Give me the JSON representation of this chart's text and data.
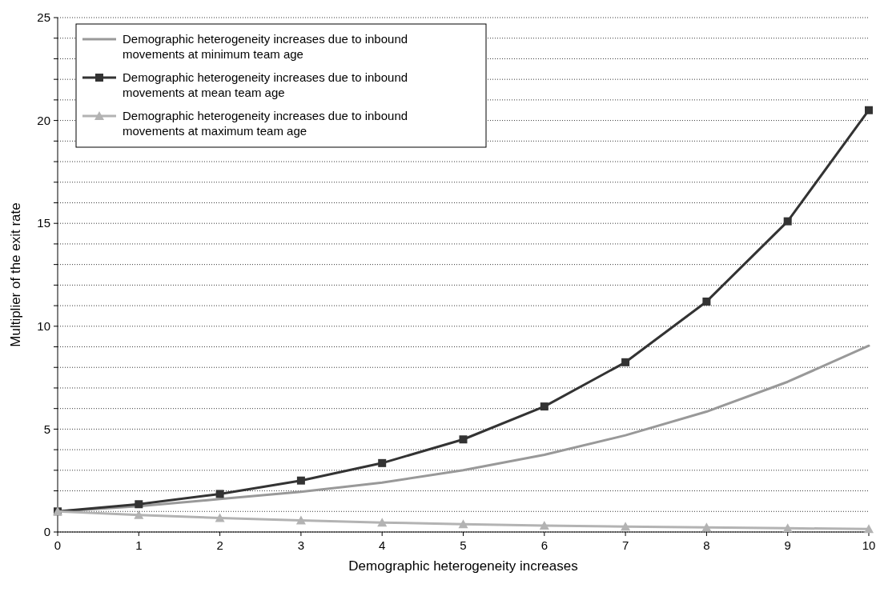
{
  "chart_data": {
    "type": "line",
    "xlabel": "Demographic heterogeneity increases",
    "ylabel": "Multiplier of the exit rate",
    "x": [
      0,
      1,
      2,
      3,
      4,
      5,
      6,
      7,
      8,
      9,
      10
    ],
    "xlim": [
      0,
      10
    ],
    "xticks": [
      0,
      1,
      2,
      3,
      4,
      5,
      6,
      7,
      8,
      9,
      10
    ],
    "ylim": [
      0,
      25
    ],
    "yticks": [
      0,
      {
        "value": 1,
        "label": null
      },
      {
        "value": 2,
        "label": null
      },
      {
        "value": 3,
        "label": null
      },
      {
        "value": 4,
        "label": null
      },
      5,
      {
        "value": 6,
        "label": null
      },
      {
        "value": 7,
        "label": null
      },
      {
        "value": 8,
        "label": null
      },
      {
        "value": 9,
        "label": null
      },
      10,
      {
        "value": 11,
        "label": null
      },
      {
        "value": 12,
        "label": null
      },
      {
        "value": 13,
        "label": null
      },
      {
        "value": 14,
        "label": null
      },
      15,
      {
        "value": 16,
        "label": null
      },
      {
        "value": 17,
        "label": null
      },
      {
        "value": 18,
        "label": null
      },
      {
        "value": 19,
        "label": null
      },
      20,
      {
        "value": 21,
        "label": null
      },
      {
        "value": 22,
        "label": null
      },
      {
        "value": 23,
        "label": null
      },
      {
        "value": 24,
        "label": null
      },
      25
    ],
    "grid": "y",
    "legend": "top left",
    "series": [
      {
        "name": "Demographic heterogeneity increases due to inbound movements at minimum team age",
        "color": "#999999",
        "marker": "none",
        "values": [
          1,
          1.25,
          1.6,
          1.95,
          2.4,
          3.0,
          3.75,
          4.7,
          5.85,
          7.3,
          9.05
        ]
      },
      {
        "name": "Demographic heterogeneity increases due to inbound movements at mean team age",
        "color": "#333333",
        "marker": "square",
        "values": [
          1,
          1.35,
          1.85,
          2.5,
          3.35,
          4.5,
          6.1,
          8.25,
          11.2,
          15.1,
          20.5
        ]
      },
      {
        "name": "Demographic heterogeneity increases due to inbound movements at maximum team age",
        "color": "#b3b3b3",
        "marker": "triangle",
        "values": [
          1,
          0.83,
          0.68,
          0.56,
          0.46,
          0.38,
          0.31,
          0.26,
          0.22,
          0.18,
          0.15
        ]
      }
    ]
  }
}
